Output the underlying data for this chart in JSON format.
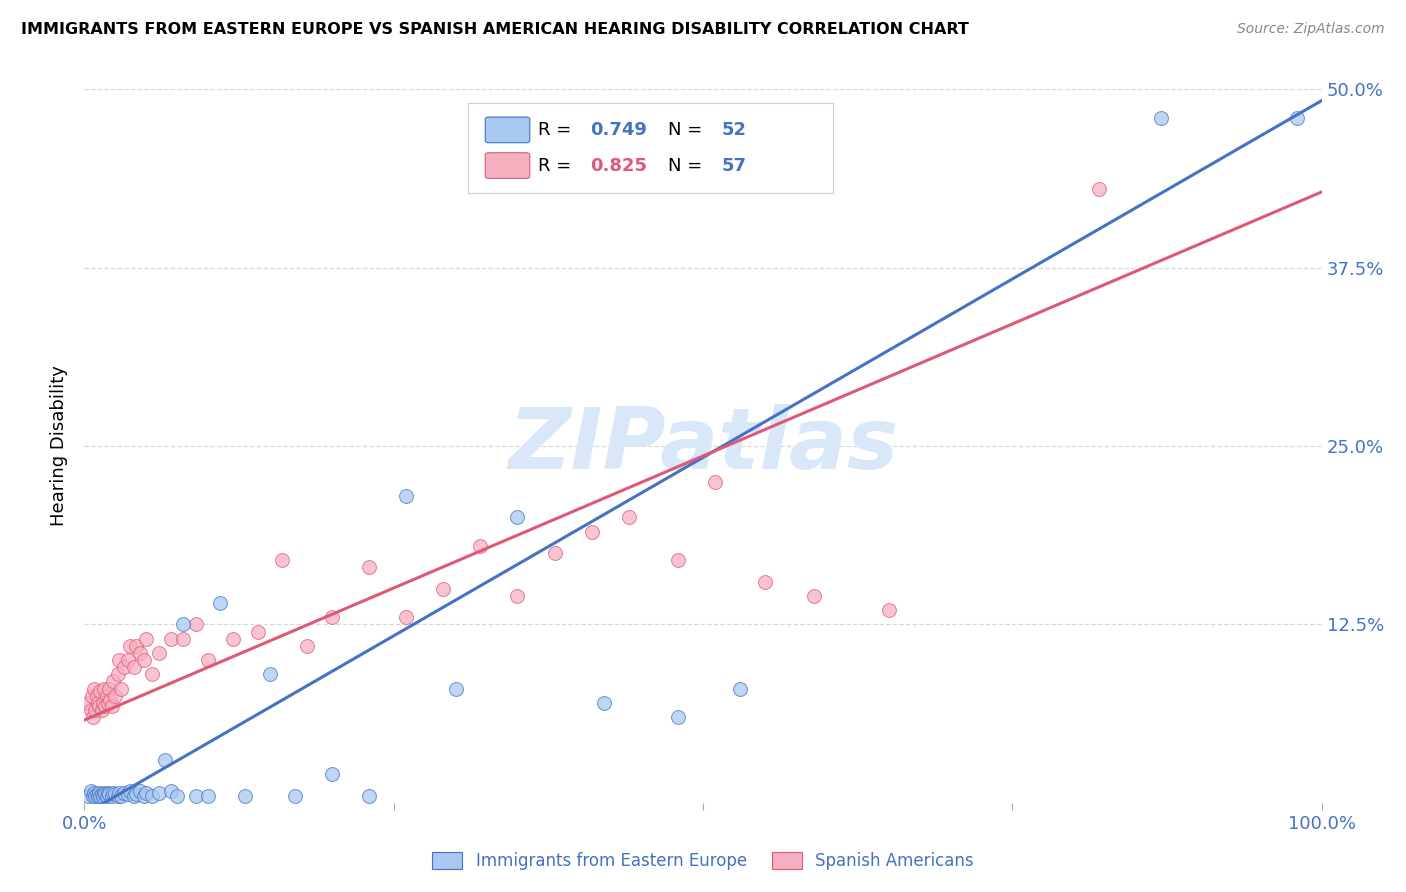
{
  "title": "IMMIGRANTS FROM EASTERN EUROPE VS SPANISH AMERICAN HEARING DISABILITY CORRELATION CHART",
  "source": "Source: ZipAtlas.com",
  "ylabel": "Hearing Disability",
  "xlim": [
    0.0,
    1.0
  ],
  "ylim": [
    0.0,
    0.5
  ],
  "ytick_vals": [
    0.0,
    0.125,
    0.25,
    0.375,
    0.5
  ],
  "ytick_labels": [
    "",
    "12.5%",
    "25.0%",
    "37.5%",
    "50.0%"
  ],
  "xtick_vals": [
    0.0,
    0.25,
    0.5,
    0.75,
    1.0
  ],
  "xtick_labels": [
    "0.0%",
    "",
    "",
    "",
    "100.0%"
  ],
  "blue_R": "0.749",
  "blue_N": "52",
  "pink_R": "0.825",
  "pink_N": "57",
  "blue_fill": "#a8c8f0",
  "blue_edge": "#4472c4",
  "pink_fill": "#f5b0c0",
  "pink_edge": "#e05878",
  "blue_line_color": "#4472c4",
  "pink_line_color": "#e05878",
  "axis_color": "#4472c4",
  "grid_color": "#d8d8d8",
  "watermark": "ZIPatlas",
  "watermark_color": "#d8e8f8",
  "legend_blue": "Immigrants from Eastern Europe",
  "legend_pink": "Spanish Americans",
  "blue_line_slope": 0.5,
  "blue_line_intercept": -0.008,
  "pink_line_slope": 0.37,
  "pink_line_intercept": 0.058,
  "blue_x": [
    0.003,
    0.005,
    0.007,
    0.008,
    0.009,
    0.01,
    0.011,
    0.012,
    0.013,
    0.014,
    0.015,
    0.016,
    0.017,
    0.018,
    0.019,
    0.02,
    0.022,
    0.023,
    0.025,
    0.027,
    0.028,
    0.03,
    0.032,
    0.035,
    0.037,
    0.04,
    0.042,
    0.045,
    0.048,
    0.05,
    0.055,
    0.06,
    0.065,
    0.07,
    0.075,
    0.08,
    0.09,
    0.1,
    0.11,
    0.13,
    0.15,
    0.17,
    0.2,
    0.23,
    0.26,
    0.3,
    0.35,
    0.42,
    0.48,
    0.53,
    0.87,
    0.98
  ],
  "blue_y": [
    0.005,
    0.008,
    0.005,
    0.007,
    0.005,
    0.006,
    0.005,
    0.007,
    0.005,
    0.006,
    0.005,
    0.007,
    0.006,
    0.005,
    0.007,
    0.006,
    0.005,
    0.007,
    0.006,
    0.005,
    0.007,
    0.005,
    0.007,
    0.006,
    0.008,
    0.005,
    0.006,
    0.008,
    0.005,
    0.007,
    0.005,
    0.007,
    0.03,
    0.008,
    0.005,
    0.125,
    0.005,
    0.005,
    0.14,
    0.005,
    0.09,
    0.005,
    0.02,
    0.005,
    0.215,
    0.08,
    0.2,
    0.07,
    0.06,
    0.08,
    0.48,
    0.48
  ],
  "pink_x": [
    0.003,
    0.005,
    0.006,
    0.007,
    0.008,
    0.009,
    0.01,
    0.011,
    0.012,
    0.013,
    0.014,
    0.015,
    0.016,
    0.017,
    0.018,
    0.019,
    0.02,
    0.021,
    0.022,
    0.023,
    0.025,
    0.027,
    0.028,
    0.03,
    0.032,
    0.035,
    0.037,
    0.04,
    0.042,
    0.045,
    0.048,
    0.05,
    0.055,
    0.06,
    0.07,
    0.08,
    0.09,
    0.1,
    0.12,
    0.14,
    0.16,
    0.18,
    0.2,
    0.23,
    0.26,
    0.29,
    0.32,
    0.35,
    0.38,
    0.41,
    0.44,
    0.48,
    0.51,
    0.55,
    0.59,
    0.65,
    0.82
  ],
  "pink_y": [
    0.07,
    0.065,
    0.075,
    0.06,
    0.08,
    0.065,
    0.075,
    0.07,
    0.068,
    0.078,
    0.065,
    0.07,
    0.08,
    0.068,
    0.075,
    0.07,
    0.08,
    0.072,
    0.068,
    0.085,
    0.075,
    0.09,
    0.1,
    0.08,
    0.095,
    0.1,
    0.11,
    0.095,
    0.11,
    0.105,
    0.1,
    0.115,
    0.09,
    0.105,
    0.115,
    0.115,
    0.125,
    0.1,
    0.115,
    0.12,
    0.17,
    0.11,
    0.13,
    0.165,
    0.13,
    0.15,
    0.18,
    0.145,
    0.175,
    0.19,
    0.2,
    0.17,
    0.225,
    0.155,
    0.145,
    0.135,
    0.43
  ]
}
